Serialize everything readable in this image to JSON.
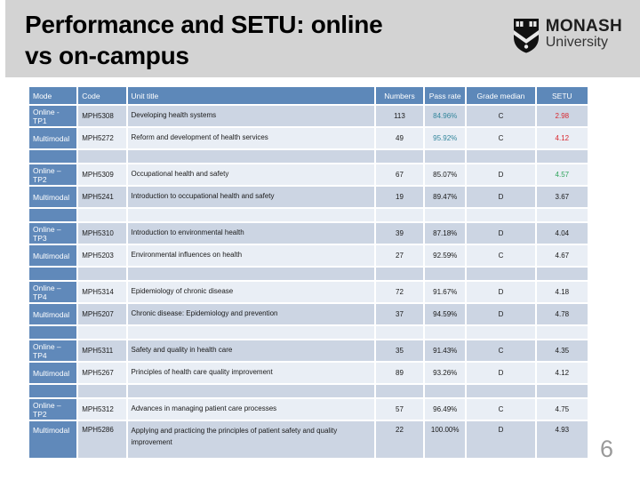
{
  "slide": {
    "title_line1": "Performance and SETU: online",
    "title_line2": "vs on-campus",
    "page_number": "6"
  },
  "logo": {
    "icon": "monash-shield-icon",
    "name": "MONASH",
    "subname": "University"
  },
  "colors": {
    "header_blue": "#5d88b9",
    "mode_blue": "#6089ba",
    "band_dark": "#ccd5e3",
    "band_light": "#e9eef5",
    "pass_teal": "#31859b",
    "alert_red": "#d9272e",
    "good_green": "#2fa45c",
    "banner_gray": "#d3d3d3"
  },
  "table": {
    "columns": [
      "Mode",
      "Code",
      "Unit title",
      "Numbers",
      "Pass rate",
      "Grade median",
      "SETU"
    ],
    "rows": [
      {
        "mode": "Online - TP1",
        "code": "MPH5308",
        "title": "Developing health systems",
        "numbers": "113",
        "pass_rate": "84.96%",
        "grade_median": "C",
        "setu": "2.98",
        "pass_rate_color": "#31859b",
        "setu_color": "#d9272e"
      },
      {
        "mode": "Multimodal",
        "code": "MPH5272",
        "title": "Reform and development of health services",
        "numbers": "49",
        "pass_rate": "95.92%",
        "grade_median": "C",
        "setu": "4.12",
        "pass_rate_color": "#31859b",
        "setu_color": "#d9272e"
      },
      {
        "mode": "Online – TP2",
        "code": "MPH5309",
        "title": "Occupational health and safety",
        "numbers": "67",
        "pass_rate": "85.07%",
        "grade_median": "D",
        "setu": "4.57",
        "setu_color": "#2fa45c"
      },
      {
        "mode": "Multimodal",
        "code": "MPH5241",
        "title": "Introduction to occupational health and safety",
        "numbers": "19",
        "pass_rate": "89.47%",
        "grade_median": "D",
        "setu": "3.67"
      },
      {
        "mode": "Online – TP3",
        "code": "MPH5310",
        "title": "Introduction to environmental health",
        "numbers": "39",
        "pass_rate": "87.18%",
        "grade_median": "D",
        "setu": "4.04"
      },
      {
        "mode": "Multimodal",
        "code": "MPH5203",
        "title": "Environmental influences on health",
        "numbers": "27",
        "pass_rate": "92.59%",
        "grade_median": "C",
        "setu": "4.67"
      },
      {
        "mode": "Online – TP4",
        "code": "MPH5314",
        "title": "Epidemiology of chronic disease",
        "numbers": "72",
        "pass_rate": "91.67%",
        "grade_median": "D",
        "setu": "4.18"
      },
      {
        "mode": "Multimodal",
        "code": "MPH5207",
        "title": "Chronic disease: Epidemiology and prevention",
        "numbers": "37",
        "pass_rate": "94.59%",
        "grade_median": "D",
        "setu": "4.78"
      },
      {
        "mode": "Online – TP4",
        "code": "MPH5311",
        "title": "Safety and quality in health care",
        "numbers": "35",
        "pass_rate": "91.43%",
        "grade_median": "C",
        "setu": "4.35"
      },
      {
        "mode": "Multimodal",
        "code": "MPH5267",
        "title": "Principles of health care quality improvement",
        "numbers": "89",
        "pass_rate": "93.26%",
        "grade_median": "D",
        "setu": "4.12"
      },
      {
        "mode": "Online – TP2",
        "code": "MPH5312",
        "title": "Advances in managing patient care processes",
        "numbers": "57",
        "pass_rate": "96.49%",
        "grade_median": "C",
        "setu": "4.75"
      },
      {
        "mode": "Multimodal",
        "code": "MPH5286",
        "title": "Applying and practicing the principles of patient safety and quality improvement",
        "numbers": "22",
        "pass_rate": "100.00%",
        "grade_median": "D",
        "setu": "4.93"
      }
    ]
  }
}
